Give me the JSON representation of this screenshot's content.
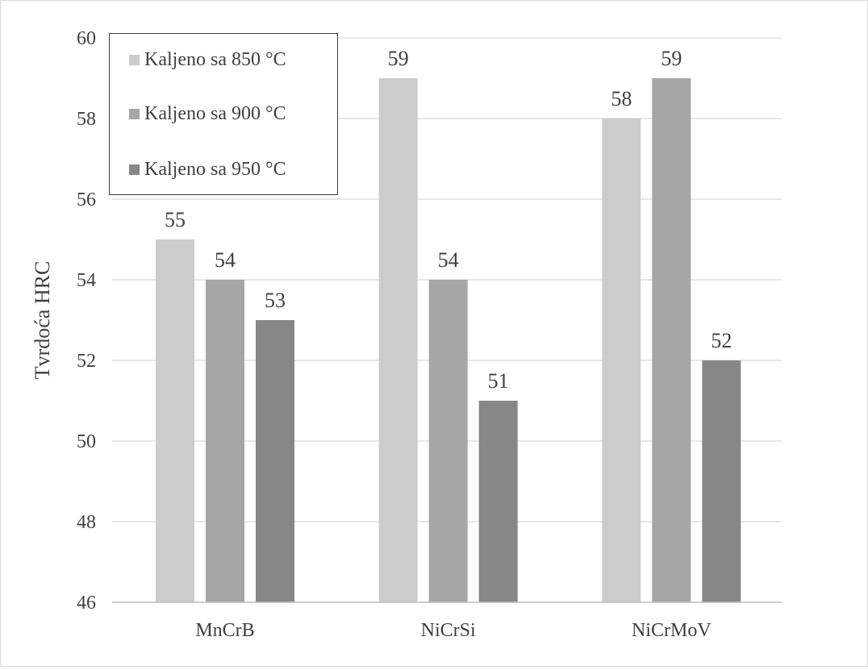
{
  "chart_data": {
    "type": "bar",
    "title": "",
    "xlabel": "",
    "ylabel": "Tvrdoća HRC",
    "categories": [
      "MnCrB",
      "NiCrSi",
      "NiCrMoV"
    ],
    "series": [
      {
        "name": "Kaljeno sa 850 °C",
        "values": [
          55,
          59,
          58
        ],
        "color": "#cccccc"
      },
      {
        "name": "Kaljeno sa 900 °C",
        "values": [
          54,
          54,
          59
        ],
        "color": "#a6a6a6"
      },
      {
        "name": "Kaljeno sa 950 °C",
        "values": [
          53,
          51,
          52
        ],
        "color": "#878787"
      }
    ],
    "ylim": [
      46,
      60
    ],
    "yticks": [
      46,
      48,
      50,
      52,
      54,
      56,
      58,
      60
    ],
    "grid": true,
    "legend_position": "top-left",
    "colors": {
      "grid": "#d9d9d9",
      "text": "#404040",
      "axis": "#bfbfbf"
    }
  }
}
